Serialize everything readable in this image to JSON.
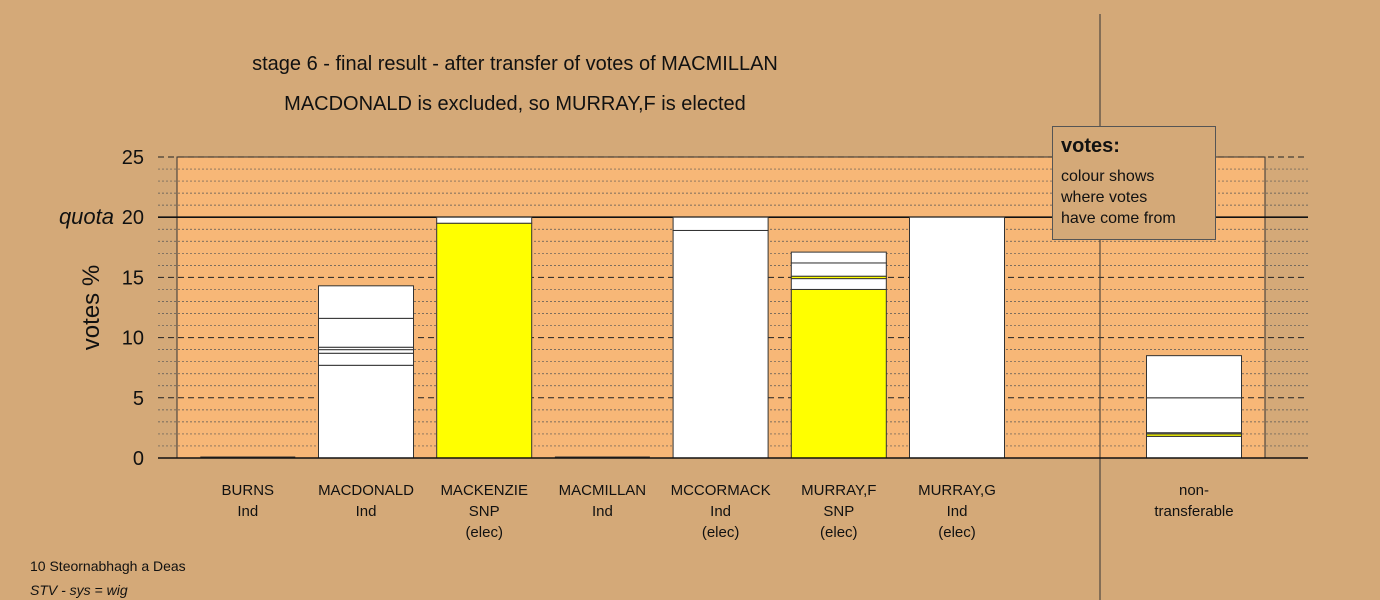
{
  "titles": {
    "line1": "stage 6 - final result - after transfer of votes of MACMILLAN",
    "line2": "MACDONALD is excluded, so MURRAY,F is elected"
  },
  "footer": {
    "line1": "10 Steornabhagh a Deas",
    "line2": "STV - sys = wig"
  },
  "legend": {
    "title": "votes:",
    "lines": [
      "colour shows",
      "where votes",
      "have come from"
    ]
  },
  "colors": {
    "background": "#d4a978",
    "plot_area": "#f7b777",
    "white": "#ffffff",
    "snp_yellow": "#ffff00"
  },
  "chart_data": {
    "type": "bar",
    "stacked": true,
    "ylabel": "votes %",
    "ylim": [
      0,
      25
    ],
    "yticks": [
      0,
      5,
      10,
      15,
      20,
      25
    ],
    "quota": {
      "label": "quota",
      "value": 20
    },
    "legend_placement": "top-right",
    "grid": true,
    "categories": [
      {
        "name": "BURNS",
        "party": "Ind",
        "status": ""
      },
      {
        "name": "MACDONALD",
        "party": "Ind",
        "status": ""
      },
      {
        "name": "MACKENZIE",
        "party": "SNP",
        "status": "(elec)"
      },
      {
        "name": "MACMILLAN",
        "party": "Ind",
        "status": ""
      },
      {
        "name": "MCCORMACK",
        "party": "Ind",
        "status": "(elec)"
      },
      {
        "name": "MURRAY,F",
        "party": "SNP",
        "status": "(elec)"
      },
      {
        "name": "MURRAY,G",
        "party": "Ind",
        "status": "(elec)"
      }
    ],
    "stacks": [
      [],
      [
        {
          "value": 7.7,
          "color": "#ffffff"
        },
        {
          "value": 1.0,
          "color": "#ffffff"
        },
        {
          "value": 0.3,
          "color": "#ffffff"
        },
        {
          "value": 0.2,
          "color": "#ffffff"
        },
        {
          "value": 2.4,
          "color": "#ffffff"
        },
        {
          "value": 2.7,
          "color": "#ffffff"
        }
      ],
      [
        {
          "value": 19.5,
          "color": "#ffff00"
        },
        {
          "value": 0.5,
          "color": "#ffffff"
        }
      ],
      [],
      [
        {
          "value": 18.9,
          "color": "#ffffff"
        },
        {
          "value": 1.1,
          "color": "#ffffff"
        }
      ],
      [
        {
          "value": 14.0,
          "color": "#ffff00"
        },
        {
          "value": 0.9,
          "color": "#ffffff"
        },
        {
          "value": 0.2,
          "color": "#ffff00"
        },
        {
          "value": 1.1,
          "color": "#ffffff"
        },
        {
          "value": 0.9,
          "color": "#ffffff"
        }
      ],
      [
        {
          "value": 20.0,
          "color": "#ffffff"
        }
      ]
    ],
    "nontransferable": {
      "label": [
        "non-",
        "transferable"
      ],
      "stack": [
        {
          "value": 1.8,
          "color": "#ffffff"
        },
        {
          "value": 0.2,
          "color": "#ffff00"
        },
        {
          "value": 0.1,
          "color": "#ffffff"
        },
        {
          "value": 2.9,
          "color": "#ffffff"
        },
        {
          "value": 3.5,
          "color": "#ffffff"
        }
      ]
    }
  }
}
